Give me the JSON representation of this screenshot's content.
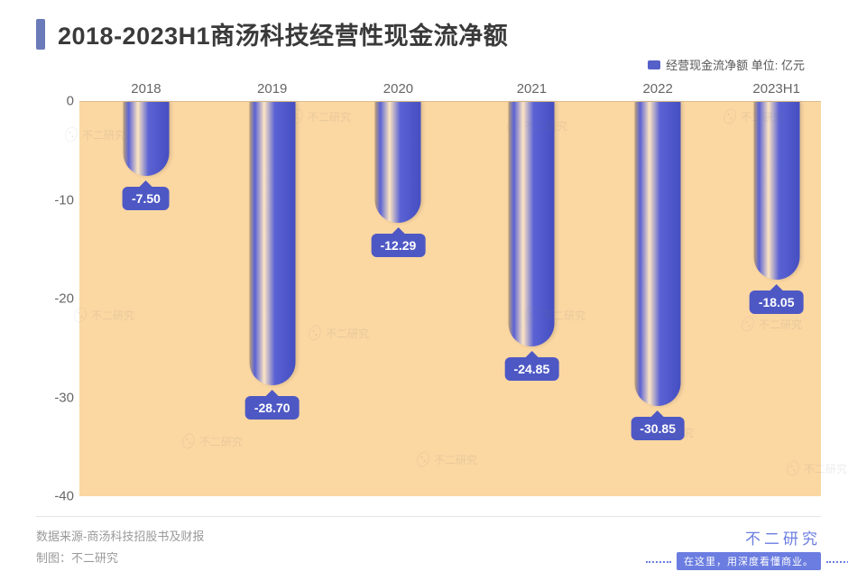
{
  "title": "2018-2023H1商汤科技经营性现金流净额",
  "accent_color": "#6b7ab8",
  "legend": {
    "label": "经营现金流净额  单位: 亿元",
    "swatch": "#5560c8"
  },
  "chart": {
    "type": "bar",
    "categories": [
      "2018",
      "2019",
      "2020",
      "2021",
      "2022",
      "2023H1"
    ],
    "values": [
      -7.5,
      -28.7,
      -12.29,
      -24.85,
      -30.85,
      -18.05
    ],
    "value_labels": [
      "-7.50",
      "-28.70",
      "-12.29",
      "-24.85",
      "-30.85",
      "-18.05"
    ],
    "ylim": [
      -40,
      0
    ],
    "ytick_step": 10,
    "yticks": [
      0,
      -10,
      -20,
      -30,
      -40
    ],
    "plot_background": "#fbd7a2",
    "bar_gradient_top": "#5a62d4",
    "bar_gradient_bottom": "#454ec0",
    "bar_highlight": "rgba(255,255,255,0.35)",
    "bar_shadow": "rgba(0,0,0,0.25)",
    "bubble_color": "#4e58c4",
    "bar_width_pct": 6.2,
    "x_positions_pct": [
      9,
      26,
      43,
      61,
      78,
      94
    ],
    "axis_text_color": "#666666",
    "tick_fontsize": 15,
    "label_fontsize": 15,
    "title_fontsize": 27
  },
  "footer": {
    "source": "数据来源-商汤科技招股书及财报",
    "maker": "制图：不二研究",
    "brand": "不二研究",
    "tagline": "在这里，用深度看懂商业。",
    "brand_color": "#6b7de0",
    "tag_bg": "#6b7de0"
  },
  "watermark_text": "不二研究"
}
